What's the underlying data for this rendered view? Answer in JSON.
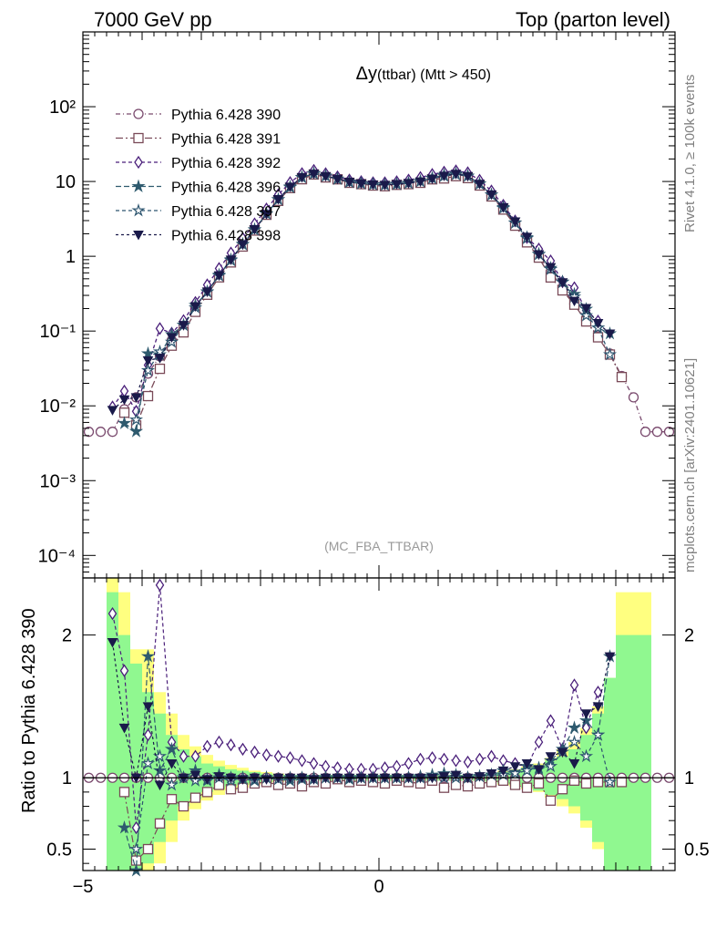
{
  "header": {
    "left": "7000 GeV pp",
    "right": "Top (parton level)"
  },
  "side_text": {
    "rivet": "Rivet 4.1.0, ≥ 100k events",
    "mcplots": "mcplots.cern.ch [arXiv:2401.10621]"
  },
  "chart_data": {
    "type": "line",
    "title_symbol": "Δy",
    "title_rest": " (ttbar) (Mtt > 450)",
    "watermark": "(MC_FBA_TTBAR)",
    "xlim": [
      -5,
      5
    ],
    "ylim": [
      5e-05,
      1000
    ],
    "yscale": "log",
    "ytick_labels": [
      "10⁻⁴",
      "10⁻³",
      "10⁻²",
      "10⁻¹",
      "1",
      "10",
      "10²"
    ],
    "xtick_labels": [
      "−5",
      "0"
    ],
    "ratio_ylabel": "Ratio to Pythia 6.428 390",
    "ratio_ylim": [
      0.35,
      2.4
    ],
    "ratio_ytick_labels": [
      "0.5",
      "1",
      "2"
    ],
    "x": [
      -4.9,
      -4.7,
      -4.5,
      -4.3,
      -4.1,
      -3.9,
      -3.7,
      -3.5,
      -3.3,
      -3.1,
      -2.9,
      -2.7,
      -2.5,
      -2.3,
      -2.1,
      -1.9,
      -1.7,
      -1.5,
      -1.3,
      -1.1,
      -0.9,
      -0.7,
      -0.5,
      -0.3,
      -0.1,
      0.1,
      0.3,
      0.5,
      0.7,
      0.9,
      1.1,
      1.3,
      1.5,
      1.7,
      1.9,
      2.1,
      2.3,
      2.5,
      2.7,
      2.9,
      3.1,
      3.3,
      3.5,
      3.7,
      3.9,
      4.1,
      4.3,
      4.5,
      4.7,
      4.9
    ],
    "reference": [
      0.0045,
      0.0045,
      0.0045,
      0.009,
      0.013,
      0.027,
      0.046,
      0.075,
      0.12,
      0.21,
      0.34,
      0.55,
      0.9,
      1.45,
      2.3,
      3.7,
      5.8,
      8.5,
      11.4,
      12.8,
      11.8,
      10.8,
      9.9,
      9.4,
      9.1,
      9.0,
      9.2,
      9.5,
      10.0,
      10.9,
      11.8,
      12.4,
      11.8,
      9.2,
      6.5,
      4.3,
      2.7,
      1.65,
      1.0,
      0.62,
      0.38,
      0.23,
      0.14,
      0.085,
      0.05,
      0.025,
      0.013,
      0.0045,
      0.0045,
      0.0045
    ],
    "series": [
      {
        "name": "Pythia 6.428 390",
        "color": "#7a4a6e",
        "marker": "circle-open",
        "dash": "5,3,1,3",
        "ratio": [
          1,
          1,
          1,
          1,
          1,
          1,
          1,
          1,
          1,
          1,
          1,
          1,
          1,
          1,
          1,
          1,
          1,
          1,
          1,
          1,
          1,
          1,
          1,
          1,
          1,
          1,
          1,
          1,
          1,
          1,
          1,
          1,
          1,
          1,
          1,
          1,
          1,
          1,
          1,
          1,
          1,
          1,
          1,
          1,
          1,
          1,
          1,
          1,
          1,
          1
        ]
      },
      {
        "name": "Pythia 6.428 391",
        "color": "#7a4a58",
        "marker": "square-open",
        "dash": "8,3,2,3",
        "ratio": [
          null,
          null,
          null,
          0.9,
          0.42,
          0.5,
          0.68,
          0.85,
          0.8,
          0.86,
          0.9,
          0.95,
          0.92,
          0.93,
          0.96,
          0.97,
          0.95,
          0.96,
          0.94,
          0.97,
          0.96,
          0.99,
          0.97,
          0.98,
          0.97,
          0.96,
          0.98,
          0.97,
          0.96,
          0.98,
          0.93,
          0.95,
          0.94,
          0.96,
          0.97,
          0.98,
          0.95,
          0.93,
          0.96,
          0.84,
          0.92,
          0.98,
          0.96,
          0.97,
          0.97,
          0.97,
          null,
          null,
          null,
          null
        ]
      },
      {
        "name": "Pythia 6.428 392",
        "color": "#4a1f7a",
        "marker": "diamond-open",
        "dash": "4,3",
        "ratio": [
          null,
          null,
          2.15,
          1.75,
          0.65,
          1.3,
          2.35,
          1.25,
          1.15,
          1.15,
          1.22,
          1.25,
          1.23,
          1.2,
          1.18,
          1.16,
          1.15,
          1.14,
          1.12,
          1.1,
          1.08,
          1.07,
          1.06,
          1.06,
          1.06,
          1.07,
          1.08,
          1.1,
          1.13,
          1.14,
          1.13,
          1.12,
          1.11,
          1.13,
          1.15,
          1.12,
          1.1,
          1.08,
          1.25,
          1.4,
          1.2,
          1.65,
          1.35,
          1.6,
          null,
          null,
          null,
          null,
          null,
          null
        ]
      },
      {
        "name": "Pythia 6.428 396",
        "color": "#2e5a6e",
        "marker": "star-filled",
        "dash": "6,3",
        "ratio": [
          null,
          null,
          null,
          0.65,
          0.35,
          1.85,
          1.05,
          1.2,
          1.0,
          1.05,
          0.98,
          1.02,
          1.0,
          0.99,
          0.98,
          1.0,
          0.99,
          0.98,
          0.99,
          1.0,
          1.0,
          1.0,
          0.99,
          1.0,
          1.0,
          1.0,
          1.0,
          1.0,
          1.01,
          1.02,
          1.03,
          1.02,
          1.0,
          1.01,
          1.02,
          1.05,
          1.04,
          1.08,
          1.06,
          1.12,
          1.2,
          1.35,
          1.4,
          1.3,
          1.85,
          null,
          null,
          null,
          null,
          null
        ]
      },
      {
        "name": "Pythia 6.428 397",
        "color": "#2e5670",
        "marker": "star-open",
        "dash": "4,3",
        "ratio": [
          null,
          null,
          null,
          null,
          0.5,
          1.1,
          1.15,
          0.95,
          1.0,
          0.98,
          0.99,
          1.0,
          0.98,
          1.0,
          0.99,
          1.0,
          0.99,
          1.0,
          1.0,
          0.99,
          1.0,
          1.0,
          1.0,
          1.0,
          1.0,
          1.0,
          1.0,
          1.0,
          1.0,
          1.01,
          1.0,
          1.0,
          1.0,
          1.01,
          1.02,
          1.02,
          1.03,
          1.05,
          1.07,
          1.08,
          1.18,
          1.25,
          1.15,
          1.3,
          0.97,
          null,
          null,
          null,
          null,
          null
        ]
      },
      {
        "name": "Pythia 6.428 398",
        "color": "#1a1a4a",
        "marker": "triangle-down",
        "dash": "3,3",
        "ratio": [
          null,
          null,
          1.95,
          1.35,
          1.0,
          1.5,
          0.95,
          1.1,
          1.0,
          1.02,
          0.99,
          1.01,
          1.0,
          0.99,
          1.0,
          0.99,
          1.0,
          1.0,
          1.0,
          0.99,
          1.0,
          1.0,
          1.0,
          1.0,
          1.0,
          1.0,
          1.0,
          1.0,
          1.0,
          1.0,
          1.01,
          1.02,
          1.0,
          1.01,
          1.03,
          1.05,
          1.08,
          1.1,
          1.06,
          1.15,
          1.18,
          1.1,
          1.45,
          1.5,
          1.85,
          null,
          null,
          null,
          null,
          null
        ]
      }
    ],
    "bands": {
      "x_edges": [
        -4.6,
        -4.4,
        -4.2,
        -4.0,
        -3.8,
        -3.6,
        -3.4,
        -3.2,
        -3.0,
        -2.8,
        -2.6,
        -2.4,
        -2.2,
        -2.0,
        -1.8,
        -1.6,
        1.6,
        1.8,
        2.0,
        2.2,
        2.4,
        2.6,
        2.8,
        3.0,
        3.2,
        3.4,
        3.6,
        3.8,
        4.0,
        4.2,
        4.4,
        4.6
      ],
      "green_half": [
        1.3,
        1.0,
        0.8,
        0.6,
        0.45,
        0.3,
        0.2,
        0.15,
        0.1,
        0.08,
        0.06,
        0.05,
        0.04,
        0.03,
        0.02,
        0.02,
        0.02,
        0.03,
        0.04,
        0.05,
        0.07,
        0.09,
        0.12,
        0.15,
        0.2,
        0.3,
        0.45,
        0.7,
        1.0,
        1.0,
        1.0
      ],
      "yellow_half": [
        1.6,
        1.3,
        0.9,
        0.9,
        0.6,
        0.45,
        0.3,
        0.22,
        0.16,
        0.12,
        0.09,
        0.07,
        0.05,
        0.04,
        0.03,
        0.02,
        0.02,
        0.03,
        0.05,
        0.06,
        0.08,
        0.1,
        0.14,
        0.2,
        0.25,
        0.35,
        0.5,
        0.7,
        1.3,
        1.3,
        1.3
      ]
    }
  }
}
